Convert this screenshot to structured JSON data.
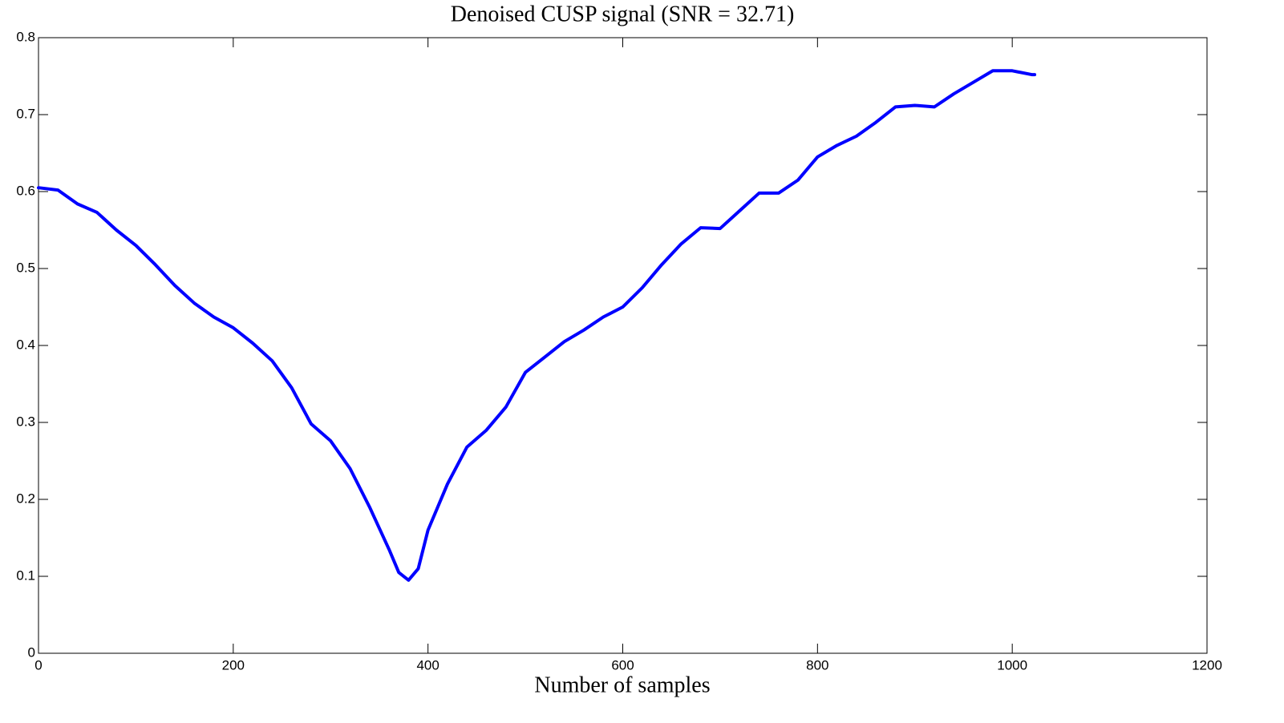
{
  "chart_data": {
    "type": "line",
    "title": "Denoised CUSP signal (SNR = 32.71)",
    "x_label": "Number of samples",
    "color": "#0000ff",
    "x": [
      0,
      20,
      40,
      60,
      80,
      100,
      120,
      140,
      160,
      180,
      200,
      220,
      240,
      260,
      280,
      300,
      320,
      340,
      360,
      370,
      380,
      390,
      400,
      420,
      440,
      460,
      480,
      500,
      520,
      540,
      560,
      580,
      600,
      620,
      640,
      660,
      680,
      700,
      720,
      740,
      760,
      780,
      800,
      820,
      840,
      860,
      880,
      900,
      920,
      940,
      960,
      980,
      1000,
      1020,
      1023
    ],
    "values": [
      0.605,
      0.602,
      0.584,
      0.573,
      0.55,
      0.53,
      0.505,
      0.478,
      0.455,
      0.437,
      0.423,
      0.403,
      0.38,
      0.345,
      0.298,
      0.276,
      0.24,
      0.19,
      0.135,
      0.105,
      0.095,
      0.11,
      0.16,
      0.22,
      0.268,
      0.29,
      0.32,
      0.365,
      0.385,
      0.405,
      0.42,
      0.437,
      0.45,
      0.475,
      0.505,
      0.532,
      0.553,
      0.552,
      0.575,
      0.598,
      0.598,
      0.615,
      0.645,
      0.66,
      0.672,
      0.69,
      0.71,
      0.712,
      0.71,
      0.727,
      0.742,
      0.757,
      0.757,
      0.752,
      0.752
    ],
    "xlim": [
      0,
      1200
    ],
    "xticks": [
      0,
      200,
      400,
      600,
      800,
      1000,
      1200
    ],
    "ylim": [
      0,
      0.8
    ],
    "yticks": [
      0,
      0.1,
      0.2,
      0.3,
      0.4,
      0.5,
      0.6,
      0.7,
      0.8
    ]
  }
}
